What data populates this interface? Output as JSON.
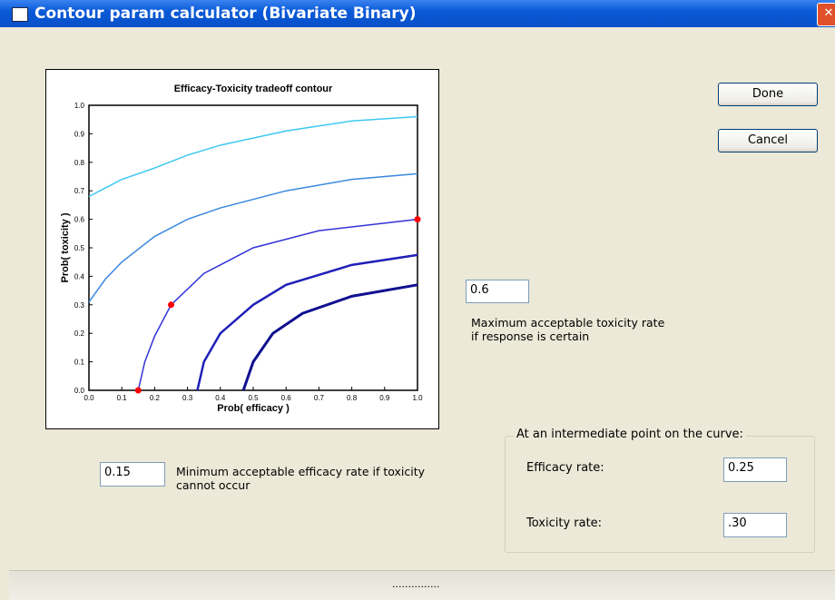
{
  "window": {
    "title": "Contour param calculator (Bivariate Binary)"
  },
  "buttons": [
    "Done",
    "Cancel"
  ],
  "max_toxicity": {
    "input": "0.6",
    "label": "Maximum acceptable toxicity rate if response is certain"
  },
  "min_efficacy": {
    "input": "0.15",
    "label": "Minimum acceptable efficacy rate if toxicity cannot occur"
  },
  "intermediate": {
    "title": "At an intermediate point on the curve:",
    "efficacy_label": "Efficacy rate:",
    "efficacy_input": "0.25",
    "toxicity_label": "Toxicity rate:",
    "toxicity_input": ".30"
  },
  "status": "...............",
  "chart_data": {
    "type": "line",
    "title": "Efficacy-Toxicity tradeoff contour",
    "xlabel": "Prob( efficacy )",
    "ylabel": "Prob( toxicity )",
    "xlim": [
      0,
      1
    ],
    "ylim": [
      0,
      1
    ],
    "xticks": [
      {
        "value": 0,
        "label": "0.0"
      },
      0.1,
      0.2,
      0.3,
      0.4,
      0.5,
      0.6,
      0.7,
      0.8,
      0.9,
      {
        "value": 1,
        "label": "1.0"
      }
    ],
    "yticks": [
      {
        "value": 0,
        "label": "0.0"
      },
      0.1,
      0.2,
      0.3,
      0.4,
      0.5,
      0.6,
      0.7,
      0.8,
      0.9,
      {
        "value": 1,
        "label": "1.0"
      }
    ],
    "series": [
      {
        "color": "#3cc8f0",
        "width": 1.5,
        "x": [
          0,
          0.1,
          0.2,
          0.3,
          0.4,
          0.6,
          0.8,
          1
        ],
        "values": [
          0.68,
          0.74,
          0.78,
          0.825,
          0.86,
          0.91,
          0.945,
          0.96
        ]
      },
      {
        "color": "#3a88e0",
        "width": 1.5,
        "x": [
          0,
          0.05,
          0.1,
          0.2,
          0.3,
          0.4,
          0.6,
          0.8,
          1
        ],
        "values": [
          0.31,
          0.39,
          0.45,
          0.54,
          0.6,
          0.64,
          0.7,
          0.74,
          0.76
        ]
      },
      {
        "color": "#3232d8",
        "width": 1.5,
        "x": [
          0.15,
          0.17,
          0.2,
          0.25,
          0.35,
          0.5,
          0.7,
          1
        ],
        "values": [
          0,
          0.1,
          0.19,
          0.3,
          0.41,
          0.5,
          0.56,
          0.6
        ]
      },
      {
        "color": "#2020b8",
        "width": 2.5,
        "x": [
          0.33,
          0.35,
          0.4,
          0.5,
          0.6,
          0.8,
          1
        ],
        "values": [
          0,
          0.1,
          0.2,
          0.3,
          0.37,
          0.44,
          0.475
        ]
      },
      {
        "color": "#101090",
        "width": 3,
        "x": [
          0.47,
          0.5,
          0.56,
          0.65,
          0.8,
          1
        ],
        "values": [
          0,
          0.1,
          0.2,
          0.27,
          0.33,
          0.37
        ]
      }
    ],
    "points": {
      "color": "#ff0000",
      "x": [
        0.15,
        0.25,
        1
      ],
      "values": [
        0,
        0.3,
        0.6
      ]
    }
  }
}
